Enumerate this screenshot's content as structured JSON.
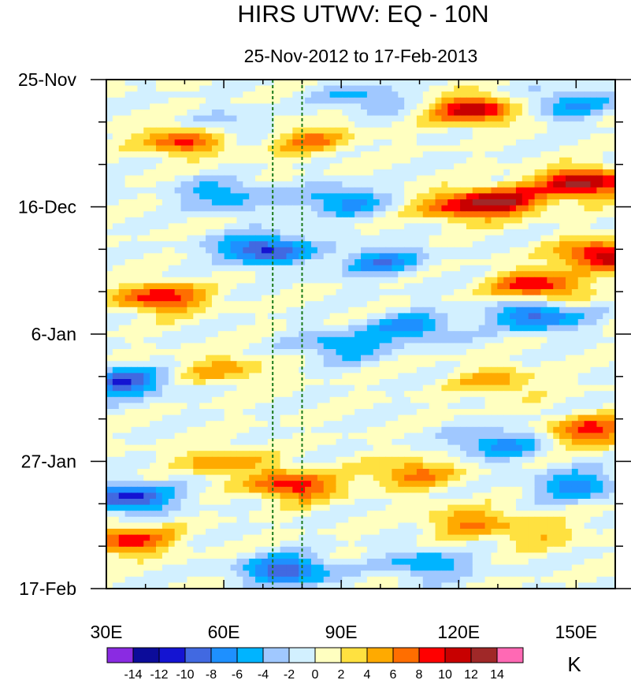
{
  "chart_data": {
    "type": "heatmap",
    "title": "HIRS UTWV: EQ - 10N",
    "subtitle": "25-Nov-2012 to 17-Feb-2013",
    "x_range": [
      30,
      160
    ],
    "x_ticks": [
      {
        "value": 30,
        "label": "30E"
      },
      {
        "value": 60,
        "label": "60E"
      },
      {
        "value": 90,
        "label": "90E"
      },
      {
        "value": 120,
        "label": "120E"
      },
      {
        "value": 150,
        "label": "150E"
      }
    ],
    "y_range_days": [
      0,
      84
    ],
    "y_ticks": [
      {
        "day": 0,
        "label": "25-Nov"
      },
      {
        "day": 21,
        "label": "16-Dec"
      },
      {
        "day": 42,
        "label": "6-Jan"
      },
      {
        "day": 63,
        "label": "27-Jan"
      },
      {
        "day": 84,
        "label": "17-Feb"
      }
    ],
    "reference_lines_lon": [
      72.5,
      80
    ],
    "colorbar": {
      "unit": "K",
      "levels": [
        -14,
        -12,
        -10,
        -8,
        -6,
        -4,
        -2,
        0,
        2,
        4,
        6,
        8,
        10,
        12,
        14
      ],
      "level_labels": [
        "-14",
        "-12",
        "-10",
        "-8",
        "-6",
        "-4",
        "-2",
        "0",
        "2",
        "4",
        "6",
        "8",
        "10",
        "12",
        "14"
      ],
      "colors": [
        "#8a2be2",
        "#0c0c9a",
        "#1414d2",
        "#4169e1",
        "#1e90ff",
        "#00b4ff",
        "#a0c8ff",
        "#d2f0ff",
        "#ffffc0",
        "#ffe140",
        "#ffaa00",
        "#ff6e00",
        "#ff0000",
        "#c80000",
        "#a02828",
        "#ff69b4"
      ]
    },
    "anomaly_features": [
      {
        "lon": 124,
        "day": 5,
        "value": 11
      },
      {
        "lon": 50,
        "day": 10,
        "value": 9
      },
      {
        "lon": 82,
        "day": 10,
        "value": 6
      },
      {
        "lon": 152,
        "day": 17,
        "value": 13
      },
      {
        "lon": 132,
        "day": 20,
        "value": 10
      },
      {
        "lon": 120,
        "day": 21,
        "value": 8
      },
      {
        "lon": 157,
        "day": 29,
        "value": 12
      },
      {
        "lon": 140,
        "day": 34,
        "value": 10
      },
      {
        "lon": 44,
        "day": 36,
        "value": 10
      },
      {
        "lon": 60,
        "day": 48,
        "value": 5
      },
      {
        "lon": 130,
        "day": 50,
        "value": 5
      },
      {
        "lon": 154,
        "day": 58,
        "value": 9
      },
      {
        "lon": 60,
        "day": 63,
        "value": 6
      },
      {
        "lon": 78,
        "day": 67,
        "value": 10
      },
      {
        "lon": 108,
        "day": 65,
        "value": 7
      },
      {
        "lon": 36,
        "day": 76,
        "value": 9
      },
      {
        "lon": 122,
        "day": 73,
        "value": 6
      },
      {
        "lon": 140,
        "day": 75,
        "value": 4
      },
      {
        "lon": 70,
        "day": 28,
        "value": -11
      },
      {
        "lon": 90,
        "day": 20,
        "value": -7
      },
      {
        "lon": 60,
        "day": 19,
        "value": -6
      },
      {
        "lon": 34,
        "day": 50,
        "value": -10
      },
      {
        "lon": 36,
        "day": 69,
        "value": -11
      },
      {
        "lon": 76,
        "day": 81,
        "value": -10
      },
      {
        "lon": 108,
        "day": 41,
        "value": -7
      },
      {
        "lon": 140,
        "day": 39,
        "value": -9
      },
      {
        "lon": 130,
        "day": 60,
        "value": -7
      },
      {
        "lon": 150,
        "day": 67,
        "value": -7
      },
      {
        "lon": 100,
        "day": 30,
        "value": -7
      },
      {
        "lon": 148,
        "day": 4,
        "value": -6
      },
      {
        "lon": 96,
        "day": 3,
        "value": -5
      },
      {
        "lon": 112,
        "day": 80,
        "value": -6
      },
      {
        "lon": 90,
        "day": 44,
        "value": -6
      },
      {
        "lon": 60,
        "day": 8,
        "value": -4
      }
    ]
  }
}
